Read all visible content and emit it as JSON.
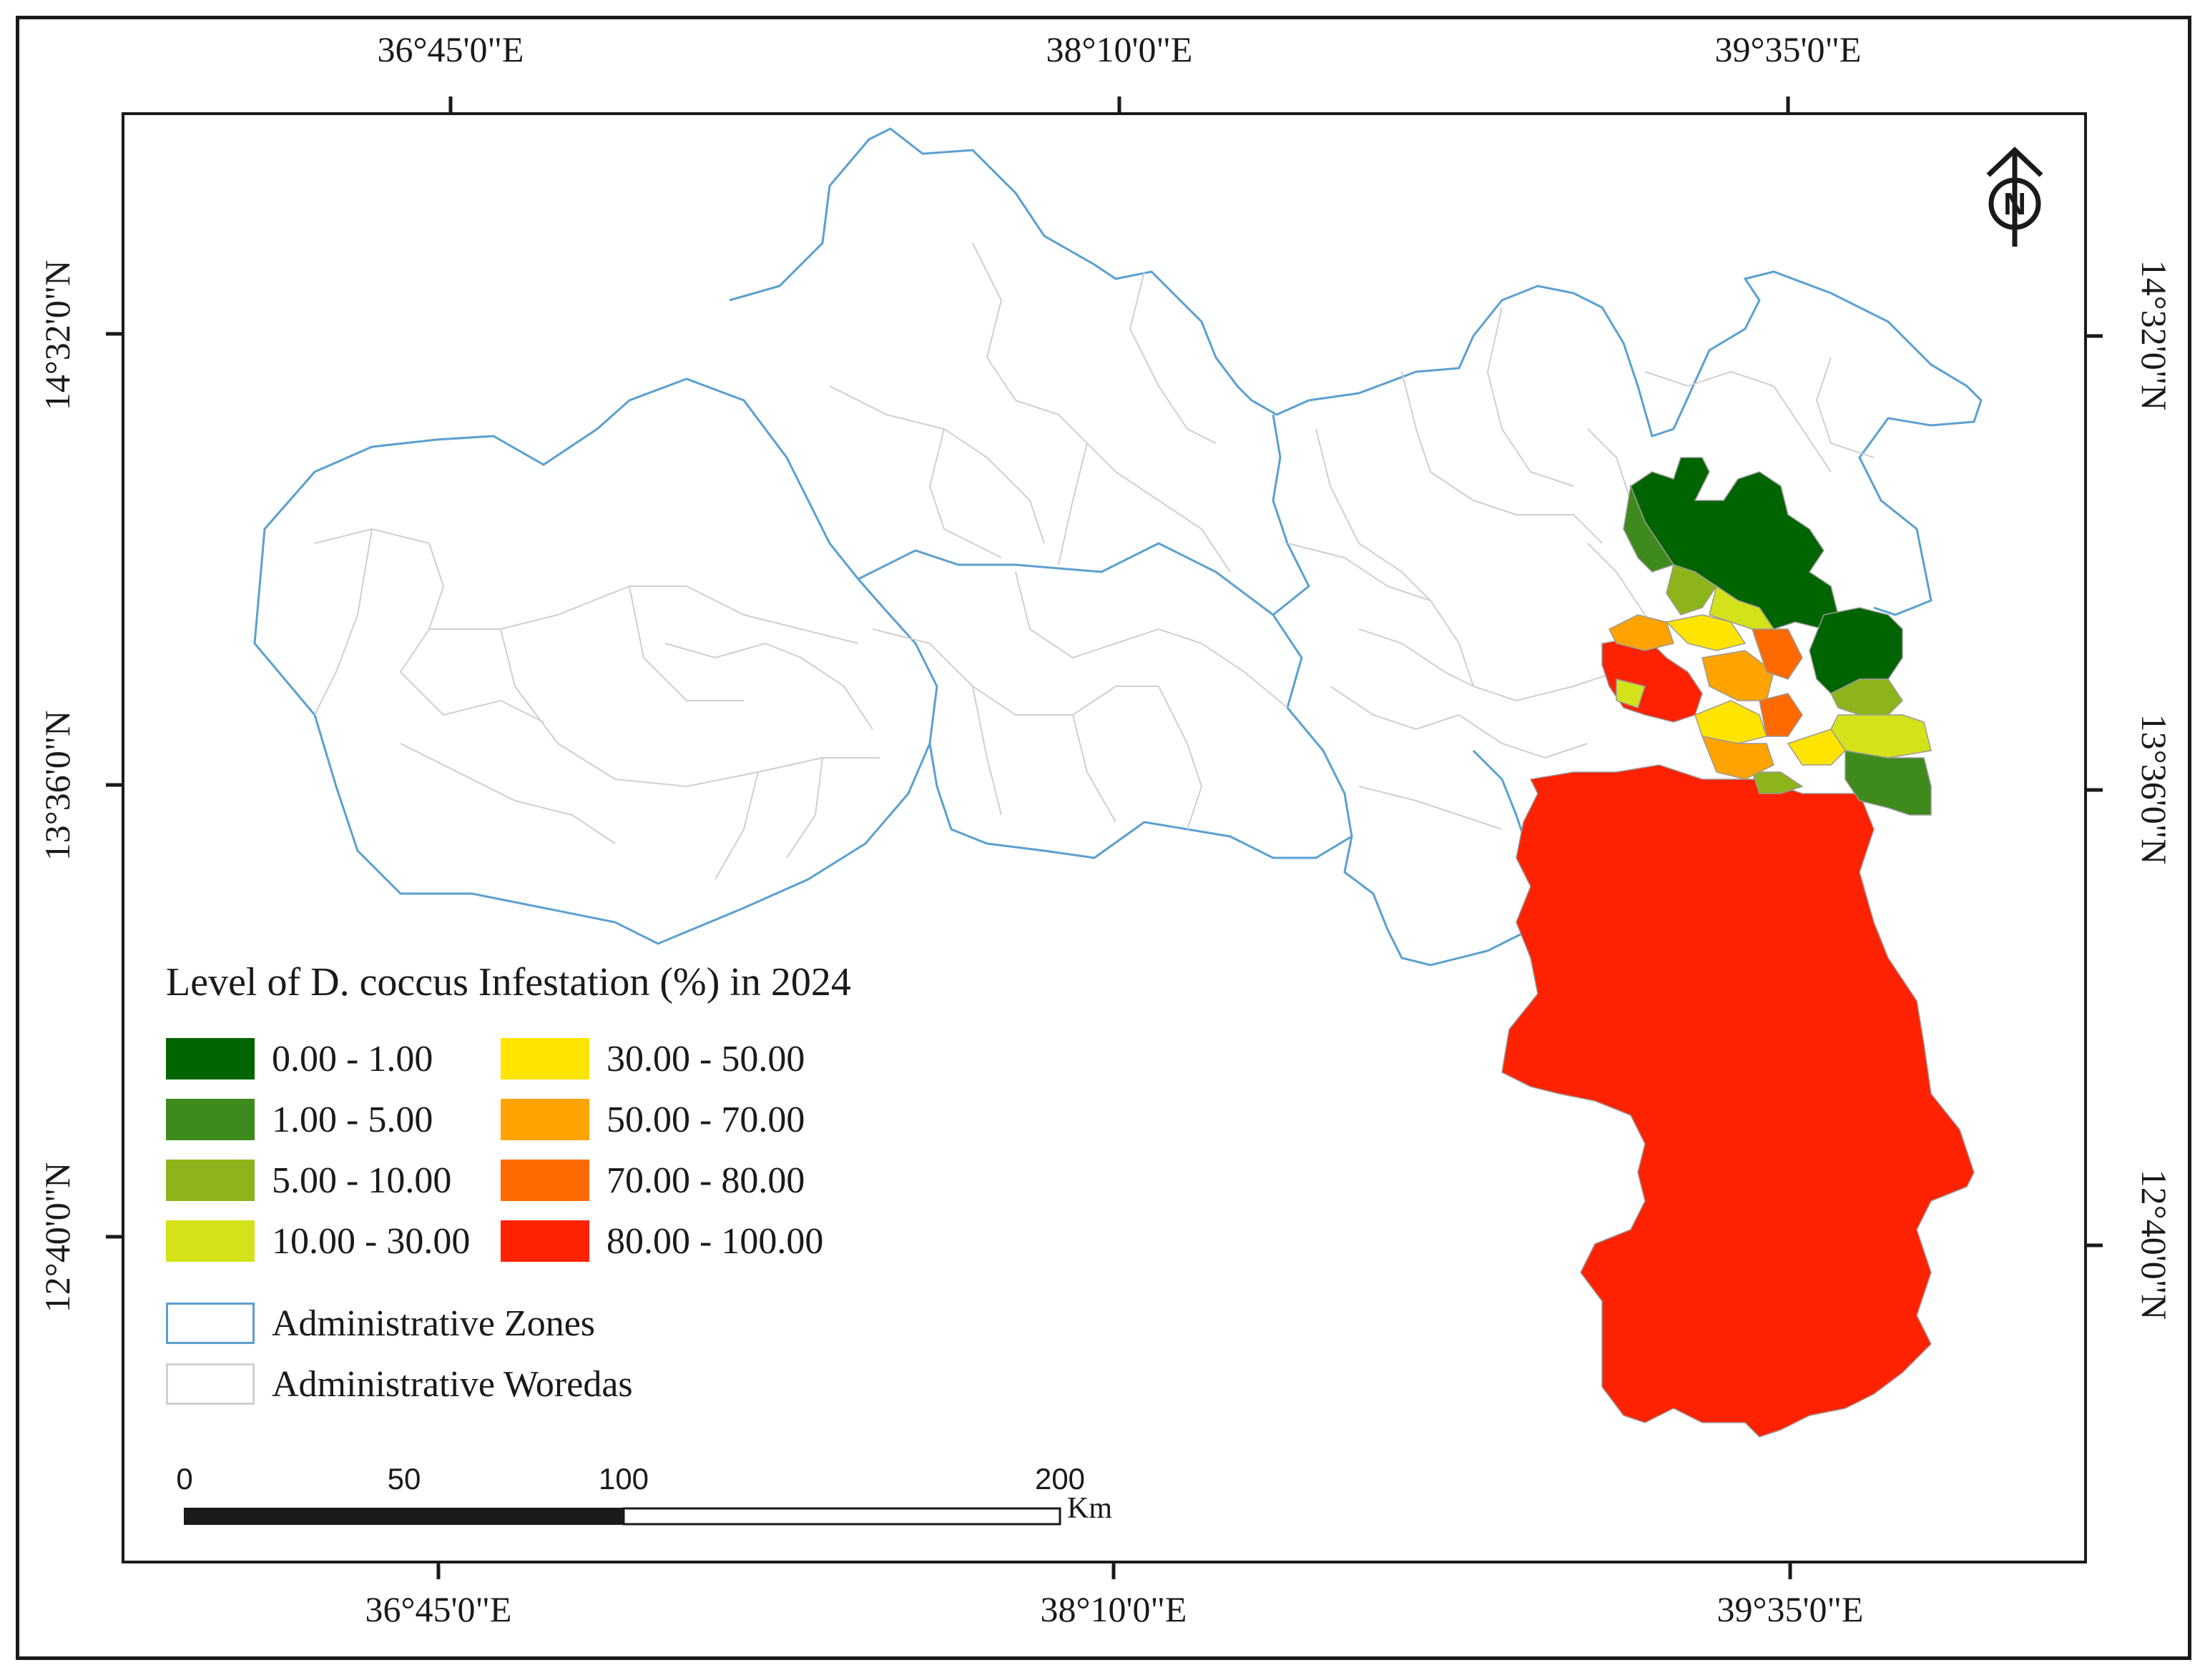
{
  "map": {
    "coordinates": {
      "top": [
        "36°45'0\"E",
        "38°10'0\"E",
        "39°35'0\"E"
      ],
      "bottom": [
        "36°45'0\"E",
        "38°10'0\"E",
        "39°35'0\"E"
      ],
      "left": [
        "14°32'0\"N",
        "13°36'0\"N",
        "12°40'0\"N"
      ],
      "right": [
        "14°32'0\"N",
        "13°36'0\"N",
        "12°40'0\"N"
      ]
    },
    "north_arrow": "N"
  },
  "legend": {
    "title": "Level of D. coccus Infestation (%) in 2024",
    "classes": [
      {
        "label": "0.00 - 1.00",
        "color": "#006400"
      },
      {
        "label": "1.00 - 5.00",
        "color": "#3f8a1c"
      },
      {
        "label": "5.00 - 10.00",
        "color": "#8db41a"
      },
      {
        "label": "10.00 - 30.00",
        "color": "#d4e21a"
      },
      {
        "label": "30.00 - 50.00",
        "color": "#ffe400"
      },
      {
        "label": "50.00 - 70.00",
        "color": "#ffa300"
      },
      {
        "label": "70.00 - 80.00",
        "color": "#ff6a00"
      },
      {
        "label": "80.00 - 100.00",
        "color": "#ff2200"
      }
    ],
    "layers": [
      {
        "label": "Administrative Zones",
        "color": "#5aa0d0"
      },
      {
        "label": "Administrative Woredas",
        "color": "#d0d0d0"
      }
    ]
  },
  "scale_bar": {
    "ticks": [
      "0",
      "50",
      "100",
      "200"
    ],
    "unit": "Km"
  }
}
